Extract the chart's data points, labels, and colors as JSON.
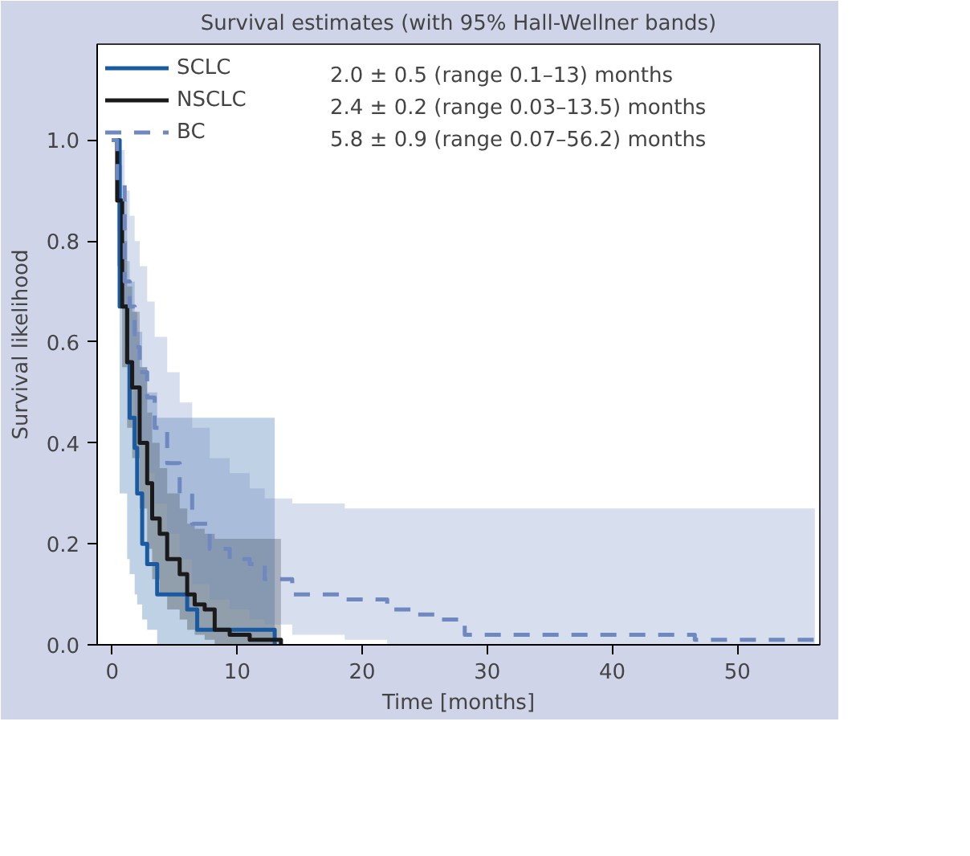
{
  "chart_data": {
    "type": "step",
    "title": "Survival estimates (with 95% Hall-Wellner bands)",
    "xlabel": "Time [months]",
    "ylabel": "Survival likelihood",
    "xlim": [
      -1.2,
      56.6
    ],
    "ylim": [
      0,
      1.19
    ],
    "xticks": [
      0,
      10,
      20,
      30,
      40,
      50
    ],
    "yticks": [
      {
        "value": 0,
        "label": "0.0"
      },
      {
        "value": 0.2,
        "label": "0.2"
      },
      {
        "value": 0.4,
        "label": "0.4"
      },
      {
        "value": 0.6,
        "label": "0.6"
      },
      {
        "value": 0.8,
        "label": "0.8"
      },
      {
        "value": 1.0,
        "label": "1.0"
      }
    ],
    "grid": false,
    "legend": "top left",
    "annotations": [
      "2.0 ± 0.5 (range 0.1–13) months",
      "2.4 ± 0.2 (range 0.03–13.5) months",
      "5.8 ± 0.9 (range 0.07–56.2) months"
    ],
    "series": [
      {
        "name": "SCLC",
        "color": "#1a5aa0",
        "line_style": "solid",
        "x": [
          0,
          0.6,
          1.2,
          1.4,
          1.8,
          2.0,
          2.4,
          2.8,
          3.6,
          6.0,
          6.8,
          13.0
        ],
        "values": [
          1.0,
          0.67,
          0.56,
          0.45,
          0.39,
          0.3,
          0.2,
          0.16,
          0.1,
          0.07,
          0.03,
          0.0
        ],
        "upper": [
          1.0,
          0.88,
          0.76,
          0.72,
          0.66,
          0.62,
          0.55,
          0.5,
          0.45,
          0.45,
          0.45,
          0.45
        ],
        "lower": [
          1.0,
          0.3,
          0.17,
          0.14,
          0.1,
          0.08,
          0.05,
          0.03,
          0.0,
          0.0,
          0.0,
          0.0
        ]
      },
      {
        "name": "NSCLC",
        "color": "#1a1a1a",
        "line_style": "solid",
        "x": [
          0,
          0.4,
          0.8,
          1.2,
          1.6,
          2.2,
          2.8,
          3.2,
          3.8,
          4.4,
          5.4,
          6.0,
          6.6,
          7.4,
          8.2,
          9.4,
          11.0,
          13.5
        ],
        "values": [
          1.0,
          0.88,
          0.67,
          0.56,
          0.51,
          0.4,
          0.32,
          0.25,
          0.22,
          0.17,
          0.14,
          0.1,
          0.08,
          0.07,
          0.03,
          0.02,
          0.01,
          0.0
        ],
        "upper": [
          1.0,
          0.95,
          0.8,
          0.71,
          0.66,
          0.55,
          0.46,
          0.4,
          0.35,
          0.3,
          0.27,
          0.24,
          0.23,
          0.22,
          0.21,
          0.21,
          0.21,
          0.21
        ],
        "lower": [
          1.0,
          0.75,
          0.55,
          0.43,
          0.37,
          0.27,
          0.19,
          0.13,
          0.1,
          0.07,
          0.05,
          0.03,
          0.02,
          0.01,
          0.0,
          0.0,
          0.0,
          0.0
        ]
      },
      {
        "name": "BC",
        "color": "#7088c0",
        "line_style": "dashed",
        "x": [
          0,
          0.4,
          1.0,
          1.4,
          1.8,
          2.2,
          2.8,
          3.4,
          4.4,
          5.4,
          6.4,
          7.8,
          9.4,
          11.0,
          12.2,
          14.4,
          18.6,
          22.0,
          24.0,
          26.0,
          28.2,
          46.6,
          56.2
        ],
        "values": [
          1.0,
          0.92,
          0.72,
          0.67,
          0.59,
          0.54,
          0.49,
          0.43,
          0.36,
          0.3,
          0.24,
          0.19,
          0.17,
          0.16,
          0.13,
          0.1,
          0.09,
          0.07,
          0.06,
          0.05,
          0.02,
          0.01,
          0.01
        ],
        "upper": [
          1.0,
          0.98,
          0.9,
          0.85,
          0.8,
          0.75,
          0.68,
          0.61,
          0.54,
          0.48,
          0.43,
          0.37,
          0.34,
          0.31,
          0.29,
          0.28,
          0.27,
          0.27,
          0.27,
          0.27,
          0.27,
          0.27,
          0.27
        ],
        "lower": [
          1.0,
          0.82,
          0.6,
          0.52,
          0.45,
          0.4,
          0.34,
          0.28,
          0.22,
          0.17,
          0.12,
          0.09,
          0.07,
          0.05,
          0.04,
          0.02,
          0.01,
          0.0,
          0.0,
          0.0,
          0.0,
          0.0,
          0.0
        ]
      }
    ]
  }
}
